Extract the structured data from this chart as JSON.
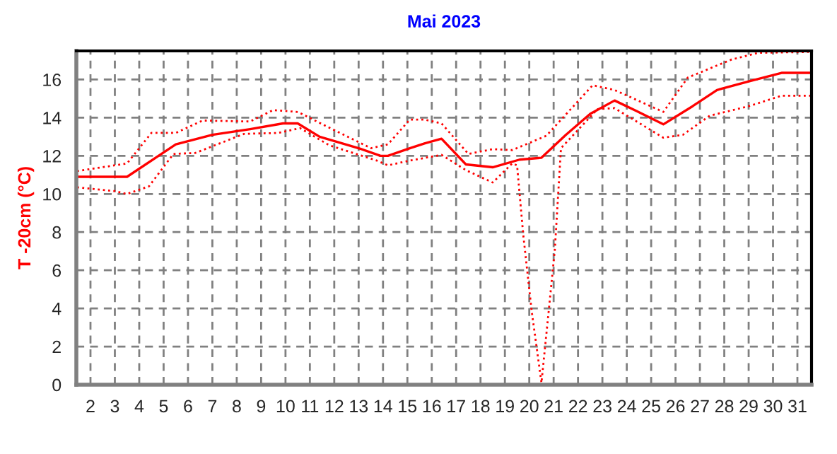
{
  "chart_data": {
    "type": "line",
    "title": "Mai 2023",
    "ylabel": "T -20cm (°C)",
    "xlim": [
      1.42,
      31.58
    ],
    "ylim": [
      0,
      17.5
    ],
    "xticks": [
      2,
      3,
      4,
      5,
      6,
      7,
      8,
      9,
      10,
      11,
      12,
      13,
      14,
      15,
      16,
      17,
      18,
      19,
      20,
      21,
      22,
      23,
      24,
      25,
      26,
      27,
      28,
      29,
      30,
      31
    ],
    "yticks": [
      0,
      2,
      4,
      6,
      8,
      10,
      12,
      14,
      16
    ],
    "grid": true,
    "marker": "none",
    "series": [
      {
        "color": "#ff0000",
        "line_style": "solid",
        "x": [
          1.45,
          3.5,
          5.5,
          7.0,
          8.55,
          9.9,
          10.5,
          11.4,
          13.0,
          13.9,
          14.2,
          15.1,
          15.7,
          16.4,
          17.4,
          18.5,
          19.6,
          20.5,
          21.5,
          22.5,
          23.5,
          24.4,
          25.5,
          26.7,
          27.7,
          29.0,
          30.35,
          31.55
        ],
        "values": [
          10.9,
          10.9,
          12.6,
          13.1,
          13.4,
          13.7,
          13.7,
          13.0,
          12.4,
          12.0,
          12.0,
          12.4,
          12.65,
          12.9,
          11.55,
          11.4,
          11.8,
          11.9,
          13.1,
          14.2,
          14.9,
          14.35,
          13.65,
          14.6,
          15.45,
          15.9,
          16.35,
          16.35
        ]
      },
      {
        "color": "#ff0000",
        "line_style": "dotted",
        "x": [
          1.45,
          3.5,
          4.5,
          5.5,
          6.6,
          8.55,
          9.5,
          10.5,
          13.5,
          14.2,
          15.1,
          15.7,
          16.4,
          17.5,
          18.5,
          19.3,
          20.7,
          22.6,
          23.5,
          25.5,
          26.5,
          28.3,
          29.4,
          31.55
        ],
        "values": [
          11.2,
          11.6,
          13.2,
          13.2,
          13.85,
          13.8,
          14.4,
          14.3,
          12.4,
          12.6,
          13.9,
          13.9,
          13.7,
          12.1,
          12.35,
          12.3,
          13.05,
          15.7,
          15.45,
          14.3,
          16.1,
          17.05,
          17.4,
          17.45
        ]
      },
      {
        "color": "#ff0000",
        "line_style": "dotted",
        "x": [
          1.45,
          3.0,
          3.5,
          4.4,
          5.4,
          6.3,
          8.3,
          9.7,
          10.6,
          11.8,
          13.75,
          14.2,
          15.1,
          16.4,
          17.4,
          18.5,
          19.3,
          19.5,
          19.75,
          20.1,
          20.5,
          20.8,
          21.05,
          21.3,
          22.8,
          23.5,
          25.5,
          26.3,
          27.4,
          29.0,
          30.35,
          31.55
        ],
        "values": [
          10.35,
          10.15,
          10.0,
          10.4,
          12.1,
          12.15,
          13.15,
          13.2,
          13.45,
          12.55,
          11.75,
          11.5,
          11.75,
          12.05,
          11.25,
          10.6,
          11.6,
          11.5,
          7.9,
          3.85,
          0.1,
          3.9,
          7.1,
          12.4,
          14.45,
          14.5,
          12.95,
          13.1,
          14.1,
          14.6,
          15.15,
          15.15
        ]
      }
    ]
  }
}
